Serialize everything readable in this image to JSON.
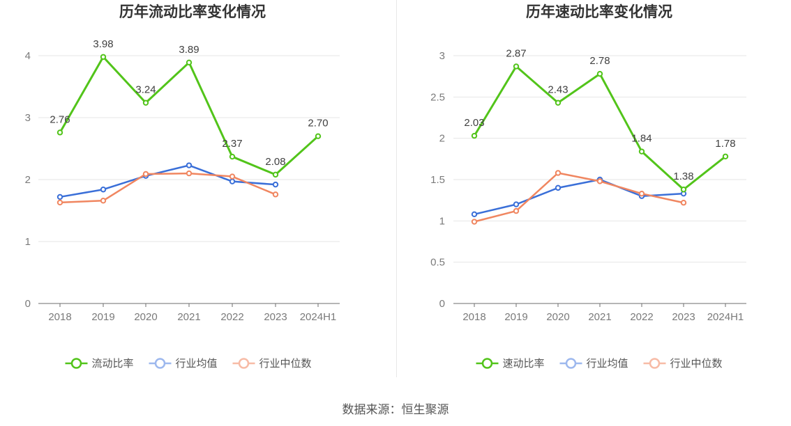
{
  "source_text": "数据来源：恒生聚源",
  "chart_data": [
    {
      "type": "line",
      "title": "历年流动比率变化情况",
      "categories": [
        "2018",
        "2019",
        "2020",
        "2021",
        "2022",
        "2023",
        "2024H1"
      ],
      "ylim": [
        0,
        4
      ],
      "yticks": [
        "0",
        "1",
        "2",
        "3",
        "4"
      ],
      "grid": true,
      "legend_position": "bottom",
      "series": [
        {
          "name": "流动比率",
          "color": "#52c41a",
          "values": [
            2.76,
            3.98,
            3.24,
            3.89,
            2.37,
            2.08,
            2.7
          ],
          "labels": [
            "2.76",
            "3.98",
            "3.24",
            "3.89",
            "2.37",
            "2.08",
            "2.70"
          ]
        },
        {
          "name": "行业均值",
          "color": "#3a6fd8",
          "values": [
            1.72,
            1.84,
            2.06,
            2.23,
            1.97,
            1.92,
            null
          ]
        },
        {
          "name": "行业中位数",
          "color": "#f08660",
          "values": [
            1.63,
            1.66,
            2.09,
            2.1,
            2.05,
            1.76,
            null
          ]
        }
      ]
    },
    {
      "type": "line",
      "title": "历年速动比率变化情况",
      "categories": [
        "2018",
        "2019",
        "2020",
        "2021",
        "2022",
        "2023",
        "2024H1"
      ],
      "ylim": [
        0,
        3
      ],
      "yticks": [
        "0",
        "0.5",
        "1",
        "1.5",
        "2",
        "2.5",
        "3"
      ],
      "grid": true,
      "legend_position": "bottom",
      "series": [
        {
          "name": "速动比率",
          "color": "#52c41a",
          "values": [
            2.03,
            2.87,
            2.43,
            2.78,
            1.84,
            1.38,
            1.78
          ],
          "labels": [
            "2.03",
            "2.87",
            "2.43",
            "2.78",
            "1.84",
            "1.38",
            "1.78"
          ]
        },
        {
          "name": "行业均值",
          "color": "#3a6fd8",
          "values": [
            1.08,
            1.2,
            1.4,
            1.5,
            1.3,
            1.33,
            null
          ]
        },
        {
          "name": "行业中位数",
          "color": "#f08660",
          "values": [
            0.99,
            1.12,
            1.58,
            1.48,
            1.33,
            1.22,
            null
          ]
        }
      ]
    }
  ]
}
